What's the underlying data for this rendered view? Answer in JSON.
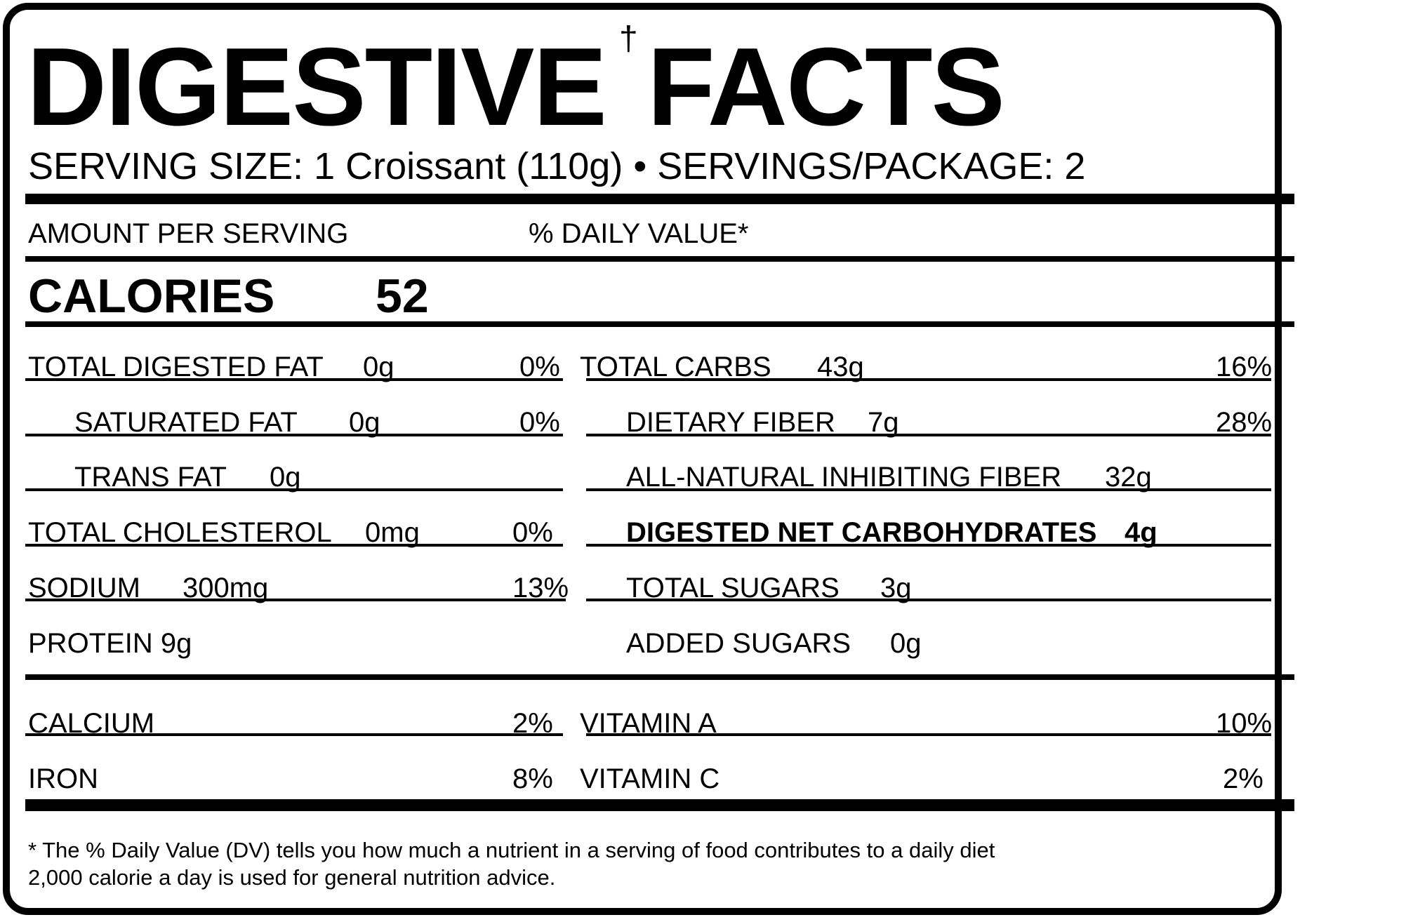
{
  "title": {
    "part1": "DIGESTIVE",
    "dagger": "†",
    "part2": "FACTS"
  },
  "serving_line": "SERVING SIZE: 1 Croissant (110g) • SERVINGS/PACKAGE: 2",
  "header": {
    "amount": "AMOUNT PER SERVING",
    "daily_value": "% DAILY VALUE*"
  },
  "calories": {
    "label": "CALORIES",
    "value": "52"
  },
  "left_rows": [
    {
      "name": "TOTAL DIGESTED FAT",
      "amount": "0g",
      "dv": "0%"
    },
    {
      "name": "SATURATED FAT",
      "amount": "0g",
      "dv": "0%"
    },
    {
      "name": "TRANS FAT",
      "amount": "0g",
      "dv": ""
    },
    {
      "name": "TOTAL CHOLESTEROL",
      "amount": "0mg",
      "dv": "0%"
    },
    {
      "name": "SODIUM",
      "amount": "300mg",
      "dv": "13%"
    },
    {
      "name": "PROTEIN 9g",
      "amount": "",
      "dv": ""
    }
  ],
  "right_rows": [
    {
      "name": "TOTAL CARBS",
      "amount": "43g",
      "dv": "16%"
    },
    {
      "name": "DIETARY FIBER",
      "amount": "7g",
      "dv": "28%"
    },
    {
      "name": "ALL-NATURAL INHIBITING FIBER",
      "amount": "32g",
      "dv": ""
    },
    {
      "name": "DIGESTED NET CARBOHYDRATES",
      "amount": "4g",
      "dv": ""
    },
    {
      "name": "TOTAL SUGARS",
      "amount": "3g",
      "dv": ""
    },
    {
      "name": "ADDED SUGARS",
      "amount": "0g",
      "dv": ""
    }
  ],
  "vitamins": {
    "left": [
      {
        "name": "CALCIUM",
        "dv": "2%"
      },
      {
        "name": "IRON",
        "dv": "8%"
      }
    ],
    "right": [
      {
        "name": "VITAMIN A",
        "dv": "10%"
      },
      {
        "name": "VITAMIN C",
        "dv": "2%"
      }
    ]
  },
  "footnote": {
    "line1": "* The % Daily Value (DV) tells you how much a nutrient in a serving of food contributes to a daily diet",
    "line2": "2,000 calorie a day is used for general nutrition advice."
  }
}
